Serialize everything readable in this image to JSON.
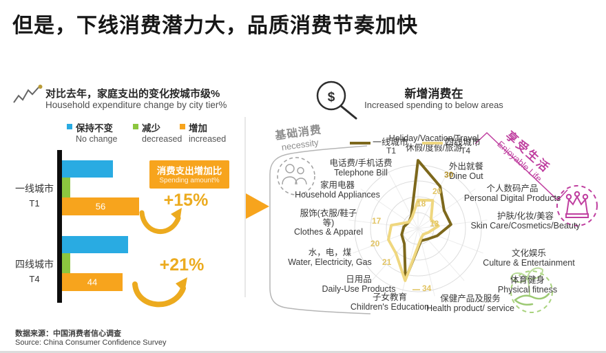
{
  "page": {
    "title": "但是，下线消费潜力大，品质消费节奏加快"
  },
  "colors": {
    "blue": "#29abe2",
    "green": "#8cc63f",
    "orange": "#f7a41d",
    "gold_text": "#ecab1f",
    "t1_dark": "#7d681c",
    "t4_light": "#efd77f",
    "t1_value_label": "#b2902a",
    "t4_value_label": "#e2c463",
    "magenta": "#bf3e9f",
    "icon_green": "#a9d37e",
    "ring_gray": "#dcdcdc"
  },
  "left_panel": {
    "heading_zh": "对比去年，家庭支出的变化按城市级%",
    "heading_en": "Household expenditure change by city tier%",
    "legend": [
      {
        "zh": "保持不变",
        "en": "No change",
        "color": "#29abe2"
      },
      {
        "zh": "减少",
        "en": "decreased",
        "color": "#8cc63f"
      },
      {
        "zh": "增加",
        "en": "increased",
        "color": "#f7a41d"
      }
    ],
    "callout_box": {
      "zh": "消费支出增加比",
      "en": "Spending amount%"
    },
    "growth": [
      {
        "tier": "T1",
        "value": "+15%"
      },
      {
        "tier": "T4",
        "value": "+21%"
      }
    ]
  },
  "right_panel": {
    "heading_zh": "新增消费在",
    "heading_en": "Increased spending to below areas",
    "legend": [
      {
        "zh": "一线城市",
        "tier": "T1",
        "color": "#7d681c"
      },
      {
        "zh": "四线城市",
        "tier": "T4",
        "color": "#efd77f"
      }
    ],
    "zone_necessity": {
      "zh": "基础消费",
      "en": "necessity"
    },
    "zone_enjoyable": {
      "zh": "享受生活",
      "en": "Enjoyable Life"
    },
    "dollar_glyph": "$"
  },
  "footer": {
    "source_zh": "数据来源：中国消费者信心调查",
    "source_en": "Source: China Consumer Confidence Survey"
  },
  "chart_data": [
    {
      "type": "bar",
      "orientation": "horizontal",
      "title": "对比去年，家庭支出的变化按城市级% / Household expenditure change by city tier%",
      "categories": [
        "一线城市 T1",
        "四线城市 T4"
      ],
      "series": [
        {
          "name": "保持不变 No change",
          "color": "#29abe2",
          "values": [
            37,
            48
          ]
        },
        {
          "name": "减少 decreased",
          "color": "#8cc63f",
          "values": [
            6,
            6
          ]
        },
        {
          "name": "增加 increased",
          "color": "#f7a41d",
          "values": [
            56,
            44
          ],
          "data_labels": [
            "56",
            "44"
          ]
        }
      ],
      "xlim": [
        0,
        60
      ],
      "annotations": [
        {
          "label": "消费支出增加比 Spending amount%"
        },
        {
          "category": "一线城市 T1",
          "label": "+15%"
        },
        {
          "category": "四线城市 T4",
          "label": "+21%"
        }
      ]
    },
    {
      "type": "radar",
      "title": "新增消费在 / Increased spending to below areas",
      "axes": [
        {
          "lines": [
            "Holiday/Vacation/Travel",
            "休假/度假/旅游"
          ]
        },
        {
          "lines": [
            "外出就餐",
            "Dine Out"
          ]
        },
        {
          "lines": [
            "个人数码产品",
            "Personal Digital Products"
          ]
        },
        {
          "lines": [
            "护肤/化妆/美容",
            "Skin Care/Cosmetics/Beauty"
          ]
        },
        {
          "lines": [
            "文化娱乐",
            "Culture & Entertainment"
          ]
        },
        {
          "lines": [
            "体育健身",
            "Physical fitness"
          ]
        },
        {
          "lines": [
            "保健产品及服务",
            "Health product/ service"
          ]
        },
        {
          "lines": [
            "子女教育",
            "Children's Education"
          ]
        },
        {
          "lines": [
            "日用品",
            "Daily-Use Products"
          ]
        },
        {
          "lines": [
            "水，电，煤",
            "Water, Electricity, Gas"
          ]
        },
        {
          "lines": [
            "服饰(衣服/鞋子",
            "等)",
            "Clothes & Apparel"
          ]
        },
        {
          "lines": [
            "家用电器",
            "Household Appliances"
          ]
        },
        {
          "lines": [
            "电话费/手机话费",
            "Telephone Bill"
          ]
        }
      ],
      "series": [
        {
          "name": "一线城市 T1",
          "color": "#7d681c",
          "values": [
            43,
            30,
            20,
            21,
            13,
            9,
            8,
            33,
            13,
            11,
            9,
            7,
            9
          ]
        },
        {
          "name": "四线城市 T4",
          "color": "#efd77f",
          "values": [
            18,
            20,
            10,
            13,
            7,
            5,
            7,
            34,
            21,
            20,
            17,
            7,
            8
          ]
        }
      ],
      "rings": [
        10,
        20,
        30,
        40
      ],
      "value_labels": [
        {
          "series": "一线城市 T1",
          "axis": "外出就餐",
          "value": 30
        },
        {
          "series": "四线城市 T4",
          "axis": "外出就餐",
          "value": 20
        },
        {
          "series": "四线城市 T4",
          "axis": "休假/度假/旅游",
          "value": 18
        },
        {
          "series": "四线城市 T4",
          "axis": "护肤/化妆/美容",
          "value": 13
        },
        {
          "series": "四线城市 T4",
          "axis": "服饰(衣服/鞋子等)",
          "value": 17
        },
        {
          "series": "四线城市 T4",
          "axis": "水，电，煤",
          "value": 20
        },
        {
          "series": "四线城市 T4",
          "axis": "日用品",
          "value": 21
        },
        {
          "series": "四线城市 T4",
          "axis": "子女教育",
          "value": 34
        }
      ]
    }
  ]
}
